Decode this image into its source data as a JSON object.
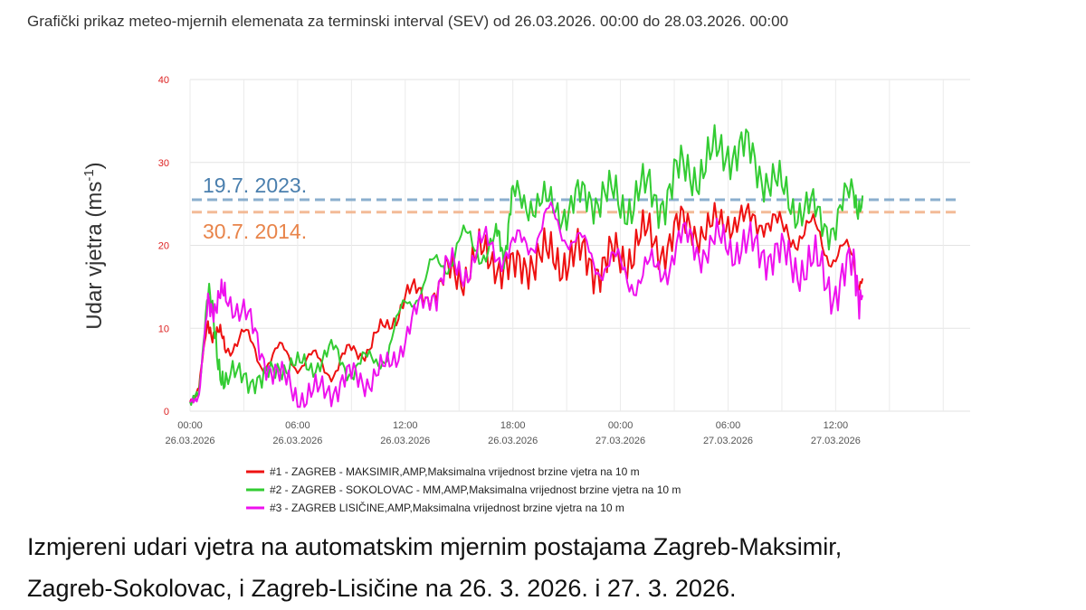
{
  "header": {
    "title": "Grafički prikaz meteo-mjernih elemenata za terminski interval (SEV) od 26.03.2026. 00:00 do 28.03.2026. 00:00"
  },
  "caption": {
    "line1": "Izmjereni udari vjetra na automatskim mjernim postajama Zagreb-Maksimir,",
    "line2": "Zagreb-Sokolovac, i Zagreb-Lisičine na 26. 3. 2026. i 27. 3. 2026."
  },
  "chart_data": {
    "type": "line",
    "title": "",
    "xlabel": "",
    "ylabel": "Udar vjetra (ms⁻¹)",
    "ylabel_main": "Udar vjetra (ms",
    "ylabel_sup": "-1",
    "ylabel_close": ")",
    "ylim": [
      0,
      40
    ],
    "yticks": [
      0,
      10,
      20,
      30,
      40
    ],
    "xlim_hours": [
      0,
      43.5
    ],
    "xticks": [
      {
        "h": 0,
        "time": "00:00",
        "date": "26.03.2026"
      },
      {
        "h": 6,
        "time": "06:00",
        "date": "26.03.2026"
      },
      {
        "h": 12,
        "time": "12:00",
        "date": "26.03.2026"
      },
      {
        "h": 18,
        "time": "18:00",
        "date": "26.03.2026"
      },
      {
        "h": 24,
        "time": "00:00",
        "date": "27.03.2026"
      },
      {
        "h": 30,
        "time": "06:00",
        "date": "27.03.2026"
      },
      {
        "h": 36,
        "time": "12:00",
        "date": "27.03.2026"
      }
    ],
    "grid": true,
    "legend_position": "bottom",
    "reference_lines": [
      {
        "label": "19.7. 2023.",
        "value": 25.5,
        "color": "#7fa7c9"
      },
      {
        "label": "30.7. 2014.",
        "value": 24.0,
        "color": "#f2b48c"
      }
    ],
    "series": [
      {
        "name": "#1 - ZAGREB - MAKSIMIR,AMP,Maksimalna vrijednost brzine vjetra na 10 m",
        "color": "#ee1111",
        "x": [
          0.0,
          0.5,
          1.0,
          1.5,
          2.0,
          3.0,
          4.0,
          5.0,
          6.0,
          7.0,
          8.0,
          9.0,
          10.0,
          11.0,
          12.0,
          13.0,
          14.0,
          15.0,
          16.0,
          17.0,
          18.0,
          19.0,
          20.0,
          21.0,
          22.0,
          23.0,
          24.0,
          25.0,
          26.0,
          27.0,
          28.0,
          29.0,
          30.0,
          31.0,
          32.0,
          33.0,
          34.0,
          35.0,
          36.0,
          37.0,
          37.5
        ],
        "y": [
          1,
          3,
          11,
          9,
          8,
          9,
          6,
          7,
          6,
          6,
          5,
          7,
          8,
          10,
          14,
          14,
          15,
          17,
          18,
          19,
          16,
          19,
          18,
          19,
          18,
          18,
          18,
          21,
          20,
          21,
          23,
          21,
          24,
          22,
          24,
          21,
          22,
          21,
          19,
          18,
          16
        ]
      },
      {
        "name": "#2 - ZAGREB - SOKOLOVAC - MM,AMP,Maksimalna vrijednost brzine vjetra na 10 m",
        "color": "#33cc33",
        "x": [
          0.0,
          0.5,
          1.0,
          1.5,
          2.0,
          3.0,
          4.0,
          5.0,
          6.0,
          7.0,
          8.0,
          9.0,
          10.0,
          11.0,
          12.0,
          13.0,
          14.0,
          15.0,
          16.0,
          17.0,
          17.5,
          18.0,
          19.0,
          20.0,
          21.0,
          22.0,
          23.0,
          24.0,
          25.0,
          26.0,
          27.0,
          28.0,
          29.0,
          30.0,
          31.0,
          32.0,
          33.0,
          34.0,
          35.0,
          36.0,
          37.0,
          37.5
        ],
        "y": [
          1,
          2,
          15,
          7,
          3,
          5,
          3,
          6,
          5,
          6,
          7,
          5,
          6,
          7,
          13,
          15,
          18,
          20,
          20,
          20,
          20,
          25,
          26,
          24,
          25,
          25,
          27,
          24,
          27,
          25,
          28,
          29,
          30,
          32,
          31,
          29,
          26,
          25,
          23,
          23,
          26,
          26
        ]
      },
      {
        "name": "#3 - ZAGREB LISIČINE,AMP,Maksimalna vrijednost brzine vjetra na 10 m",
        "color": "#ee11ee",
        "x": [
          0.0,
          0.5,
          1.0,
          1.5,
          2.0,
          3.0,
          4.0,
          5.0,
          6.0,
          7.0,
          8.0,
          9.0,
          10.0,
          11.0,
          12.0,
          13.0,
          14.0,
          15.0,
          16.0,
          17.0,
          18.0,
          19.0,
          20.0,
          21.0,
          22.0,
          23.0,
          24.0,
          25.0,
          26.0,
          27.0,
          28.0,
          29.0,
          30.0,
          31.0,
          32.0,
          33.0,
          34.0,
          35.0,
          36.0,
          37.0,
          37.5
        ],
        "y": [
          1,
          2,
          13,
          13,
          14,
          12,
          7,
          4,
          2,
          2,
          3,
          4,
          4,
          5,
          9,
          13,
          16,
          17,
          19,
          20,
          19,
          21,
          23,
          22,
          19,
          18,
          17,
          16,
          17,
          19,
          21,
          19,
          21,
          19,
          20,
          18,
          18,
          17,
          15,
          17,
          14
        ]
      }
    ]
  }
}
